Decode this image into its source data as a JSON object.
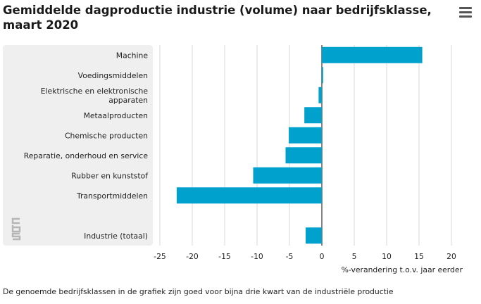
{
  "header": {
    "title": "Gemiddelde dagproductie industrie (volume) naar bedrijfsklasse, maart 2020",
    "menu_icon": "hamburger-menu-icon"
  },
  "footnote": "De genoemde bedrijfsklassen in de grafiek zijn goed voor bijna drie kwart van de industriële productie",
  "logo": {
    "name": "cbs-logo-icon",
    "text": "cbs"
  },
  "colors": {
    "bar": "#00a1cd",
    "label_panel": "#efefef",
    "grid": "#d9d9d9",
    "zero_line": "#333333"
  },
  "chart_data": {
    "type": "bar",
    "orientation": "horizontal",
    "title": "Gemiddelde dagproductie industrie (volume) naar bedrijfsklasse, maart 2020",
    "xlabel": "%-verandering t.o.v. jaar eerder",
    "ylabel": "",
    "xlim": [
      -25,
      20
    ],
    "xticks": [
      -25,
      -20,
      -15,
      -10,
      -5,
      0,
      5,
      10,
      15,
      20
    ],
    "grid": true,
    "categories": [
      [
        "Machine"
      ],
      [
        "Voedingsmiddelen"
      ],
      [
        "Elektrische en elektronische",
        "apparaten"
      ],
      [
        "Metaalproducten"
      ],
      [
        "Chemische producten"
      ],
      [
        "Reparatie, onderhoud en service"
      ],
      [
        "Rubber en kunststof"
      ],
      [
        "Transportmiddelen"
      ],
      [
        ""
      ],
      [
        "Industrie (totaal)"
      ]
    ],
    "values": [
      15.5,
      0.2,
      -0.5,
      -2.7,
      -5.1,
      -5.6,
      -10.6,
      -22.4,
      null,
      -2.5
    ]
  }
}
